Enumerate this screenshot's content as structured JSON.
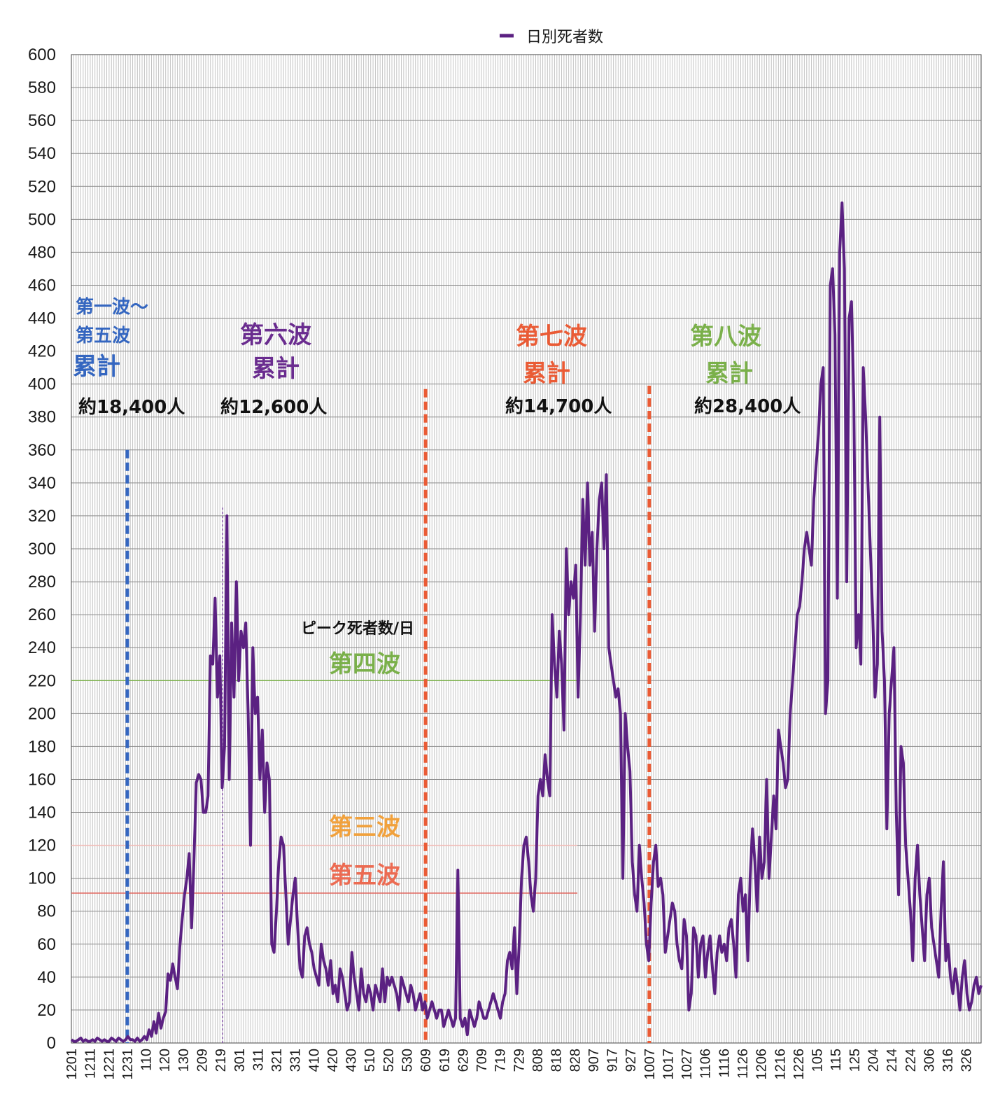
{
  "chart_data": {
    "type": "line",
    "title": "",
    "xlabel": "",
    "ylabel": "",
    "ylim": [
      0,
      600
    ],
    "yticks": [
      0,
      20,
      40,
      60,
      80,
      100,
      120,
      140,
      160,
      180,
      200,
      220,
      240,
      260,
      280,
      300,
      320,
      340,
      360,
      380,
      400,
      420,
      440,
      460,
      480,
      500,
      520,
      540,
      560,
      580,
      600
    ],
    "x_tick_labels": [
      "1201",
      "1211",
      "1221",
      "1231",
      "110",
      "120",
      "130",
      "209",
      "219",
      "301",
      "311",
      "321",
      "331",
      "410",
      "420",
      "430",
      "510",
      "520",
      "530",
      "609",
      "619",
      "629",
      "709",
      "719",
      "729",
      "808",
      "818",
      "828",
      "907",
      "917",
      "927",
      "1007",
      "1017",
      "1027",
      "1106",
      "1116",
      "1126",
      "1206",
      "1216",
      "1226",
      "105",
      "115",
      "125",
      "204",
      "214",
      "224",
      "306",
      "316",
      "326"
    ],
    "grid": true,
    "legend_position": "top-center",
    "series": [
      {
        "name": "日別死者数",
        "color": "#5b2182",
        "values": [
          2,
          1,
          1,
          2,
          3,
          1,
          2,
          1,
          1,
          2,
          1,
          3,
          2,
          1,
          2,
          1,
          1,
          3,
          2,
          1,
          3,
          2,
          1,
          2,
          4,
          2,
          2,
          1,
          3,
          1,
          2,
          4,
          2,
          8,
          4,
          13,
          6,
          18,
          9,
          15,
          19,
          42,
          38,
          48,
          40,
          33,
          58,
          75,
          90,
          100,
          115,
          70,
          110,
          158,
          163,
          160,
          140,
          140,
          150,
          235,
          230,
          270,
          210,
          235,
          155,
          180,
          320,
          160,
          255,
          210,
          280,
          220,
          250,
          240,
          255,
          200,
          120,
          240,
          200,
          210,
          160,
          190,
          140,
          170,
          160,
          60,
          55,
          80,
          110,
          125,
          120,
          90,
          60,
          75,
          90,
          100,
          70,
          45,
          40,
          65,
          70,
          60,
          55,
          45,
          40,
          35,
          60,
          50,
          45,
          35,
          50,
          30,
          35,
          25,
          45,
          40,
          30,
          20,
          25,
          55,
          40,
          30,
          20,
          45,
          30,
          25,
          35,
          30,
          20,
          35,
          30,
          25,
          45,
          25,
          40,
          35,
          40,
          35,
          30,
          20,
          40,
          35,
          30,
          25,
          35,
          30,
          20,
          25,
          30,
          20,
          25,
          15,
          20,
          25,
          20,
          15,
          20,
          20,
          10,
          15,
          20,
          15,
          10,
          15,
          105,
          15,
          10,
          15,
          5,
          20,
          15,
          10,
          15,
          25,
          20,
          15,
          15,
          20,
          25,
          30,
          25,
          20,
          15,
          25,
          30,
          50,
          55,
          45,
          70,
          30,
          60,
          100,
          120,
          125,
          110,
          90,
          80,
          100,
          150,
          160,
          150,
          175,
          160,
          150,
          260,
          230,
          210,
          250,
          230,
          190,
          300,
          260,
          280,
          270,
          290,
          210,
          260,
          330,
          290,
          340,
          290,
          310,
          250,
          300,
          330,
          340,
          300,
          345,
          240,
          230,
          220,
          210,
          215,
          200,
          100,
          200,
          180,
          165,
          110,
          90,
          80,
          120,
          100,
          85,
          60,
          50,
          85,
          110,
          120,
          95,
          100,
          90,
          55,
          65,
          75,
          85,
          80,
          60,
          50,
          45,
          75,
          65,
          20,
          30,
          70,
          65,
          40,
          60,
          65,
          40,
          55,
          65,
          45,
          30,
          55,
          65,
          55,
          60,
          50,
          70,
          75,
          60,
          40,
          90,
          100,
          80,
          90,
          50,
          100,
          130,
          110,
          80,
          125,
          100,
          110,
          160,
          100,
          125,
          150,
          130,
          190,
          180,
          170,
          155,
          160,
          200,
          220,
          240,
          260,
          265,
          280,
          300,
          310,
          300,
          290,
          330,
          350,
          370,
          400,
          410,
          200,
          220,
          460,
          470,
          430,
          270,
          480,
          510,
          470,
          280,
          440,
          450,
          390,
          240,
          260,
          230,
          410,
          380,
          340,
          300,
          260,
          210,
          230,
          380,
          250,
          220,
          130,
          200,
          220,
          240,
          140,
          90,
          180,
          170,
          120,
          100,
          80,
          50,
          100,
          120,
          90,
          70,
          50,
          90,
          100,
          70,
          60,
          50,
          40,
          80,
          110,
          50,
          60,
          40,
          30,
          45,
          35,
          20,
          40,
          50,
          30,
          20,
          25,
          35,
          40,
          30,
          35
        ]
      }
    ],
    "reference_lines": [
      {
        "label": "第四波",
        "value": 220,
        "color": "#7ab04a",
        "label_color": "#7ab04a"
      },
      {
        "label": "第三波",
        "value": 120,
        "color": "#f3bbb6",
        "label_color": "#f1a13c"
      },
      {
        "label": "第五波",
        "value": 91,
        "color": "#e05a52",
        "label_color": "#ec6b52"
      }
    ],
    "divider_lines": [
      {
        "x_label": "1231",
        "top": 360,
        "color": "#3466c0"
      },
      {
        "x_label": "609",
        "top": 397,
        "color": "#ea5b35"
      },
      {
        "x_label": "1007",
        "top": 399,
        "color": "#ea5b35"
      }
    ],
    "peak_guide": {
      "x_label": "219",
      "top": 325,
      "color": "#7b3fa6"
    },
    "annotations": {
      "wave_1_5": {
        "title_line1": "第一波〜",
        "title_line2": "第五波",
        "title_line3": "累計",
        "total": "約18,400人",
        "color": "#3466c0"
      },
      "wave_6": {
        "title": "第六波",
        "sub": "累計",
        "total": "約12,600人",
        "color": "#6a2c8f"
      },
      "wave_7": {
        "title": "第七波",
        "sub": "累計",
        "total": "約14,700人",
        "color": "#ea5b35"
      },
      "wave_8": {
        "title": "第八波",
        "sub": "累計",
        "total": "約28,400人",
        "color": "#7ab04a"
      },
      "peak_label": "ピーク死者数/日"
    }
  }
}
